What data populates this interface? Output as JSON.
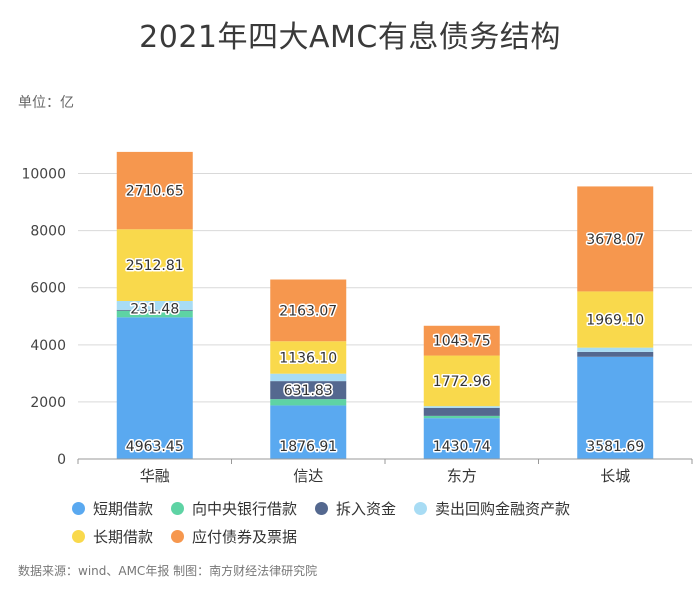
{
  "title": "2021年四大AMC有息债务结构",
  "unit_label": "单位：亿",
  "source": "数据来源：wind、AMC年报 制图：南方财经法律研究院",
  "chart_data": {
    "type": "bar",
    "stacked": true,
    "categories": [
      "华融",
      "信达",
      "东方",
      "长城"
    ],
    "ylim": [
      0,
      11000
    ],
    "yticks": [
      0,
      2000,
      4000,
      6000,
      8000,
      10000
    ],
    "grid": true,
    "legend_position": "bottom",
    "series": [
      {
        "name": "短期借款",
        "color": "#5aa9f0",
        "values": [
          4963.45,
          1876.91,
          1430.74,
          3581.69
        ],
        "labels": [
          "4963.45",
          "1876.91",
          "1430.74",
          "3581.69"
        ]
      },
      {
        "name": "向中央银行借款",
        "color": "#5ed3a4",
        "values": [
          231.48,
          220,
          80,
          0
        ],
        "labels": [
          "231.48",
          "",
          "",
          ""
        ]
      },
      {
        "name": "拆入资金",
        "color": "#54688f",
        "values": [
          30,
          631.83,
          280,
          170
        ],
        "labels": [
          "",
          "631.83",
          "",
          ""
        ]
      },
      {
        "name": "卖出回购金融资产款",
        "color": "#a8dcf4",
        "values": [
          310,
          260,
          60,
          150
        ],
        "labels": [
          "",
          "",
          "",
          ""
        ]
      },
      {
        "name": "长期借款",
        "color": "#f9d94c",
        "values": [
          2512.81,
          1136.1,
          1772.96,
          1969.1
        ],
        "labels": [
          "2512.81",
          "1136.10",
          "1772.96",
          "1969.10"
        ]
      },
      {
        "name": "应付债券及票据",
        "color": "#f6974e",
        "values": [
          2710.65,
          2163.07,
          1043.75,
          3678.07
        ],
        "labels": [
          "2710.65",
          "2163.07",
          "1043.75",
          "3678.07"
        ]
      }
    ]
  }
}
